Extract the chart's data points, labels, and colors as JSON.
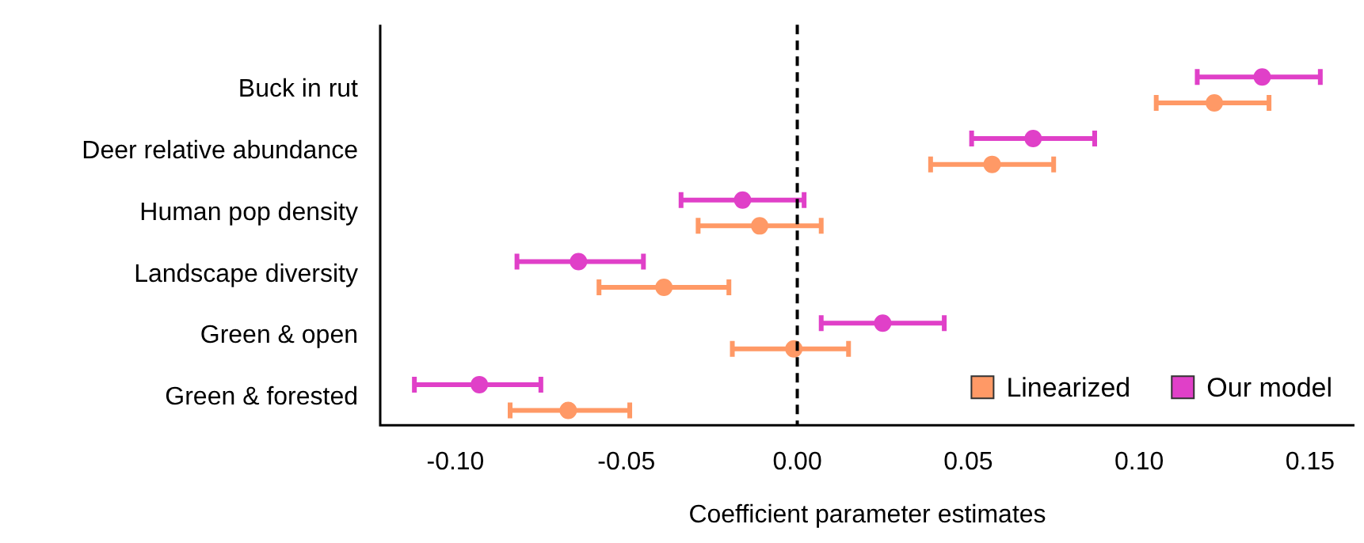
{
  "chart_data": {
    "type": "scatter",
    "orientation": "horizontal",
    "xlabel": "Coefficient parameter estimates",
    "categories": [
      "Buck in rut",
      "Deer relative abundance",
      "Human pop density",
      "Landscape diversity",
      "Green & open",
      "Green & forested"
    ],
    "series": [
      {
        "name": "Linearized",
        "color": "#ff9966",
        "values": [
          0.122,
          0.057,
          -0.011,
          -0.039,
          -0.001,
          -0.067
        ],
        "errors": [
          [
            0.105,
            0.138
          ],
          [
            0.039,
            0.075
          ],
          [
            -0.029,
            0.007
          ],
          [
            -0.058,
            -0.02
          ],
          [
            -0.019,
            0.015
          ],
          [
            -0.084,
            -0.049
          ]
        ]
      },
      {
        "name": "Our model",
        "color": "#e040c8",
        "values": [
          0.136,
          0.069,
          -0.016,
          -0.064,
          0.025,
          -0.093
        ],
        "errors": [
          [
            0.117,
            0.153
          ],
          [
            0.051,
            0.087
          ],
          [
            -0.034,
            0.002
          ],
          [
            -0.082,
            -0.045
          ],
          [
            0.007,
            0.043
          ],
          [
            -0.112,
            -0.075
          ]
        ]
      }
    ],
    "xlim": [
      -0.122,
      0.163
    ],
    "xticks": [
      {
        "value": -0.1,
        "label": "-0.10"
      },
      {
        "value": -0.05,
        "label": "-0.05"
      },
      {
        "value": 0,
        "label": "0.00"
      },
      {
        "value": 0.05,
        "label": "0.05"
      },
      {
        "value": 0.1,
        "label": "0.10"
      },
      {
        "value": 0.15,
        "label": "0.15"
      }
    ],
    "ref_lines": [
      {
        "axis": "x",
        "value": 0,
        "color": "#000000",
        "line_style": "dashed"
      }
    ],
    "marker": "circle",
    "grid": false,
    "legend": "bottom right"
  }
}
